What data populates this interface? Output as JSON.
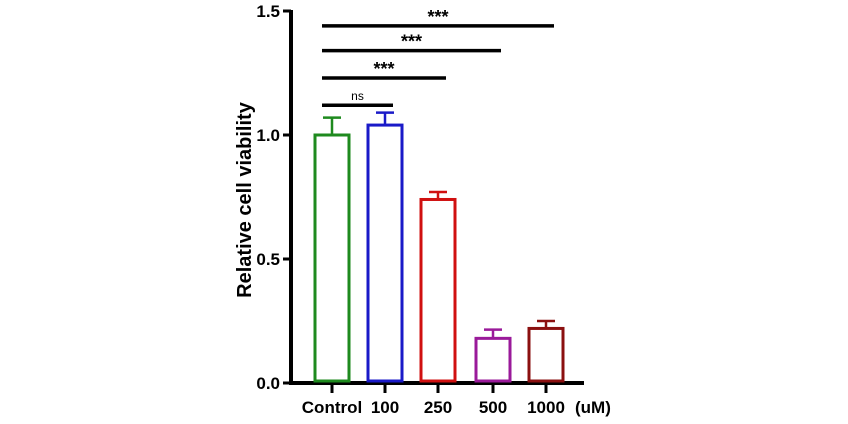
{
  "chart_data": {
    "type": "bar",
    "title": "",
    "xlabel": "",
    "unit_label": "(uM)",
    "ylabel": "Relative cell viability",
    "ylim": [
      0,
      1.5
    ],
    "yticks": [
      "0.0",
      "0.5",
      "1.0",
      "1.5"
    ],
    "ytick_values": [
      0,
      0.5,
      1.0,
      1.5
    ],
    "categories": [
      "Control",
      "100",
      "250",
      "500",
      "1000"
    ],
    "values": [
      1.0,
      1.04,
      0.74,
      0.18,
      0.22
    ],
    "errors": [
      0.07,
      0.05,
      0.03,
      0.035,
      0.03
    ],
    "colors": [
      "#1e8a1e",
      "#1a1ac8",
      "#d01010",
      "#9a1a9a",
      "#8b1010"
    ],
    "fill": "none",
    "grid": false,
    "significance": [
      {
        "from": "Control",
        "to": "100",
        "label": "ns",
        "level": 1.12
      },
      {
        "from": "Control",
        "to": "250",
        "label": "***",
        "level": 1.23
      },
      {
        "from": "Control",
        "to": "500",
        "label": "***",
        "level": 1.34
      },
      {
        "from": "Control",
        "to": "1000",
        "label": "***",
        "level": 1.44
      }
    ]
  }
}
